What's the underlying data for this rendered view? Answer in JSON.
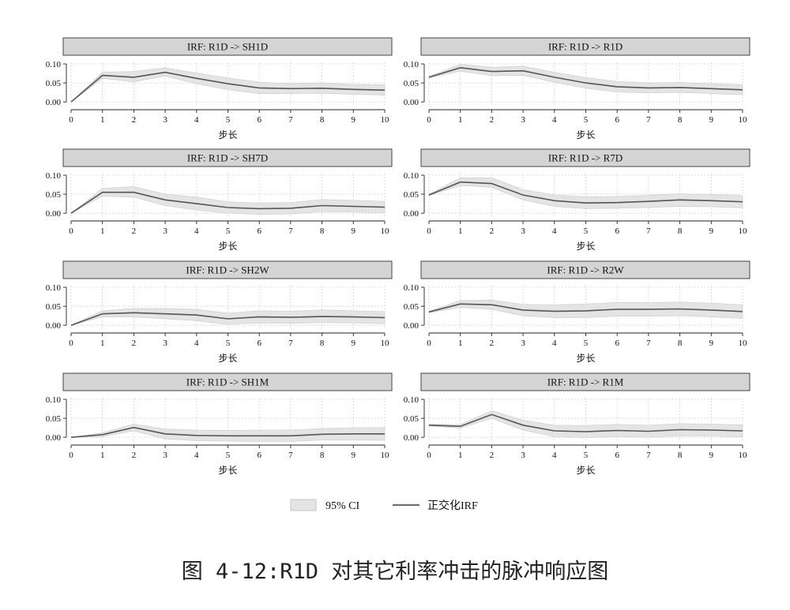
{
  "chart_data": [
    {
      "type": "line",
      "title": "IRF: R1D -> SH1D",
      "xlabel": "步长",
      "x": [
        0,
        1,
        2,
        3,
        4,
        5,
        6,
        7,
        8,
        9,
        10
      ],
      "xticks": [
        0,
        1,
        2,
        3,
        4,
        5,
        6,
        7,
        8,
        9,
        10
      ],
      "yticks": [
        "0.00",
        "0.05",
        "0.10"
      ],
      "ylim": [
        -0.01,
        0.1
      ],
      "grid": true,
      "series": [
        {
          "name": "正交化IRF",
          "values": [
            0.0,
            0.07,
            0.065,
            0.078,
            0.062,
            0.048,
            0.037,
            0.035,
            0.036,
            0.033,
            0.031
          ]
        },
        {
          "name": "95% CI",
          "lower": [
            0.0,
            0.062,
            0.053,
            0.068,
            0.048,
            0.032,
            0.022,
            0.022,
            0.023,
            0.02,
            0.018
          ],
          "upper": [
            0.0,
            0.078,
            0.08,
            0.09,
            0.076,
            0.063,
            0.052,
            0.048,
            0.05,
            0.046,
            0.045
          ]
        }
      ]
    },
    {
      "type": "line",
      "title": "IRF: R1D -> R1D",
      "xlabel": "步长",
      "x": [
        0,
        1,
        2,
        3,
        4,
        5,
        6,
        7,
        8,
        9,
        10
      ],
      "xticks": [
        0,
        1,
        2,
        3,
        4,
        5,
        6,
        7,
        8,
        9,
        10
      ],
      "yticks": [
        "0.00",
        "0.05",
        "0.10"
      ],
      "ylim": [
        -0.01,
        0.1
      ],
      "grid": true,
      "series": [
        {
          "name": "正交化IRF",
          "values": [
            0.065,
            0.09,
            0.08,
            0.082,
            0.065,
            0.05,
            0.04,
            0.037,
            0.038,
            0.035,
            0.032
          ]
        },
        {
          "name": "95% CI",
          "lower": [
            0.063,
            0.081,
            0.069,
            0.07,
            0.052,
            0.036,
            0.026,
            0.024,
            0.025,
            0.022,
            0.019
          ],
          "upper": [
            0.067,
            0.099,
            0.091,
            0.094,
            0.078,
            0.064,
            0.054,
            0.05,
            0.051,
            0.048,
            0.045
          ]
        }
      ]
    },
    {
      "type": "line",
      "title": "IRF: R1D -> SH7D",
      "xlabel": "步长",
      "x": [
        0,
        1,
        2,
        3,
        4,
        5,
        6,
        7,
        8,
        9,
        10
      ],
      "xticks": [
        0,
        1,
        2,
        3,
        4,
        5,
        6,
        7,
        8,
        9,
        10
      ],
      "yticks": [
        "0.00",
        "0.05",
        "0.10"
      ],
      "ylim": [
        -0.01,
        0.1
      ],
      "grid": true,
      "series": [
        {
          "name": "正交化IRF",
          "values": [
            0.0,
            0.055,
            0.055,
            0.035,
            0.025,
            0.015,
            0.012,
            0.013,
            0.02,
            0.018,
            0.016
          ]
        },
        {
          "name": "95% CI",
          "lower": [
            0.0,
            0.045,
            0.042,
            0.02,
            0.008,
            0.0,
            -0.003,
            -0.002,
            0.004,
            0.003,
            0.001
          ],
          "upper": [
            0.0,
            0.065,
            0.07,
            0.05,
            0.042,
            0.03,
            0.027,
            0.028,
            0.036,
            0.034,
            0.031
          ]
        }
      ]
    },
    {
      "type": "line",
      "title": "IRF: R1D -> R7D",
      "xlabel": "步长",
      "x": [
        0,
        1,
        2,
        3,
        4,
        5,
        6,
        7,
        8,
        9,
        10
      ],
      "xticks": [
        0,
        1,
        2,
        3,
        4,
        5,
        6,
        7,
        8,
        9,
        10
      ],
      "yticks": [
        "0.00",
        "0.05",
        "0.10"
      ],
      "ylim": [
        -0.01,
        0.1
      ],
      "grid": true,
      "series": [
        {
          "name": "正交化IRF",
          "values": [
            0.048,
            0.082,
            0.078,
            0.048,
            0.033,
            0.027,
            0.028,
            0.031,
            0.035,
            0.033,
            0.03
          ]
        },
        {
          "name": "95% CI",
          "lower": [
            0.046,
            0.073,
            0.068,
            0.035,
            0.018,
            0.012,
            0.013,
            0.015,
            0.018,
            0.017,
            0.014
          ],
          "upper": [
            0.05,
            0.093,
            0.093,
            0.062,
            0.048,
            0.043,
            0.044,
            0.047,
            0.051,
            0.049,
            0.046
          ]
        }
      ]
    },
    {
      "type": "line",
      "title": "IRF: R1D -> SH2W",
      "xlabel": "步长",
      "x": [
        0,
        1,
        2,
        3,
        4,
        5,
        6,
        7,
        8,
        9,
        10
      ],
      "xticks": [
        0,
        1,
        2,
        3,
        4,
        5,
        6,
        7,
        8,
        9,
        10
      ],
      "yticks": [
        "0.00",
        "0.05",
        "0.10"
      ],
      "ylim": [
        -0.01,
        0.1
      ],
      "grid": true,
      "series": [
        {
          "name": "正交化IRF",
          "values": [
            0.0,
            0.03,
            0.033,
            0.03,
            0.027,
            0.017,
            0.022,
            0.021,
            0.023,
            0.022,
            0.02
          ]
        },
        {
          "name": "95% CI",
          "lower": [
            0.0,
            0.022,
            0.022,
            0.017,
            0.012,
            0.002,
            0.006,
            0.005,
            0.007,
            0.006,
            0.004
          ],
          "upper": [
            0.0,
            0.038,
            0.044,
            0.044,
            0.042,
            0.032,
            0.038,
            0.037,
            0.04,
            0.038,
            0.036
          ]
        }
      ]
    },
    {
      "type": "line",
      "title": "IRF: R1D -> R2W",
      "xlabel": "步长",
      "x": [
        0,
        1,
        2,
        3,
        4,
        5,
        6,
        7,
        8,
        9,
        10
      ],
      "xticks": [
        0,
        1,
        2,
        3,
        4,
        5,
        6,
        7,
        8,
        9,
        10
      ],
      "yticks": [
        "0.00",
        "0.05",
        "0.10"
      ],
      "ylim": [
        -0.01,
        0.1
      ],
      "grid": true,
      "series": [
        {
          "name": "正交化IRF",
          "values": [
            0.035,
            0.056,
            0.054,
            0.04,
            0.037,
            0.038,
            0.042,
            0.042,
            0.043,
            0.04,
            0.036
          ]
        },
        {
          "name": "95% CI",
          "lower": [
            0.033,
            0.047,
            0.042,
            0.025,
            0.02,
            0.02,
            0.024,
            0.024,
            0.025,
            0.022,
            0.018
          ],
          "upper": [
            0.037,
            0.065,
            0.066,
            0.055,
            0.054,
            0.056,
            0.06,
            0.06,
            0.061,
            0.058,
            0.054
          ]
        }
      ]
    },
    {
      "type": "line",
      "title": "IRF: R1D -> SH1M",
      "xlabel": "步长",
      "x": [
        0,
        1,
        2,
        3,
        4,
        5,
        6,
        7,
        8,
        9,
        10
      ],
      "xticks": [
        0,
        1,
        2,
        3,
        4,
        5,
        6,
        7,
        8,
        9,
        10
      ],
      "yticks": [
        "0.00",
        "0.05",
        "0.10"
      ],
      "ylim": [
        -0.01,
        0.1
      ],
      "grid": true,
      "series": [
        {
          "name": "正交化IRF",
          "values": [
            0.0,
            0.007,
            0.026,
            0.009,
            0.005,
            0.004,
            0.004,
            0.004,
            0.008,
            0.009,
            0.009
          ]
        },
        {
          "name": "95% CI",
          "lower": [
            0.0,
            0.002,
            0.017,
            -0.004,
            -0.009,
            -0.01,
            -0.011,
            -0.011,
            -0.007,
            -0.007,
            -0.008
          ],
          "upper": [
            0.0,
            0.012,
            0.035,
            0.022,
            0.019,
            0.018,
            0.019,
            0.019,
            0.023,
            0.025,
            0.026
          ]
        }
      ]
    },
    {
      "type": "line",
      "title": "IRF: R1D -> R1M",
      "xlabel": "步长",
      "x": [
        0,
        1,
        2,
        3,
        4,
        5,
        6,
        7,
        8,
        9,
        10
      ],
      "xticks": [
        0,
        1,
        2,
        3,
        4,
        5,
        6,
        7,
        8,
        9,
        10
      ],
      "yticks": [
        "0.00",
        "0.05",
        "0.10"
      ],
      "ylim": [
        -0.01,
        0.1
      ],
      "grid": true,
      "series": [
        {
          "name": "正交化IRF",
          "values": [
            0.032,
            0.029,
            0.06,
            0.032,
            0.017,
            0.015,
            0.018,
            0.016,
            0.02,
            0.019,
            0.017
          ]
        },
        {
          "name": "95% CI",
          "lower": [
            0.03,
            0.024,
            0.05,
            0.019,
            0.002,
            -0.001,
            0.002,
            0.0,
            0.004,
            0.003,
            0.001
          ],
          "upper": [
            0.034,
            0.034,
            0.07,
            0.045,
            0.032,
            0.031,
            0.034,
            0.032,
            0.036,
            0.035,
            0.033
          ]
        }
      ]
    }
  ],
  "legend": {
    "ci_label": "95% CI",
    "irf_label": "正交化IRF",
    "position": "bottom-center"
  },
  "colors": {
    "line": "#555555",
    "ci_fill": "#e4e4e4",
    "ci_edge": "#cfcfcf",
    "strip_fill": "#d4d4d4",
    "grid": "#c8c8c8"
  },
  "caption": "图 4-12:R1D 对其它利率冲击的脉冲响应图"
}
